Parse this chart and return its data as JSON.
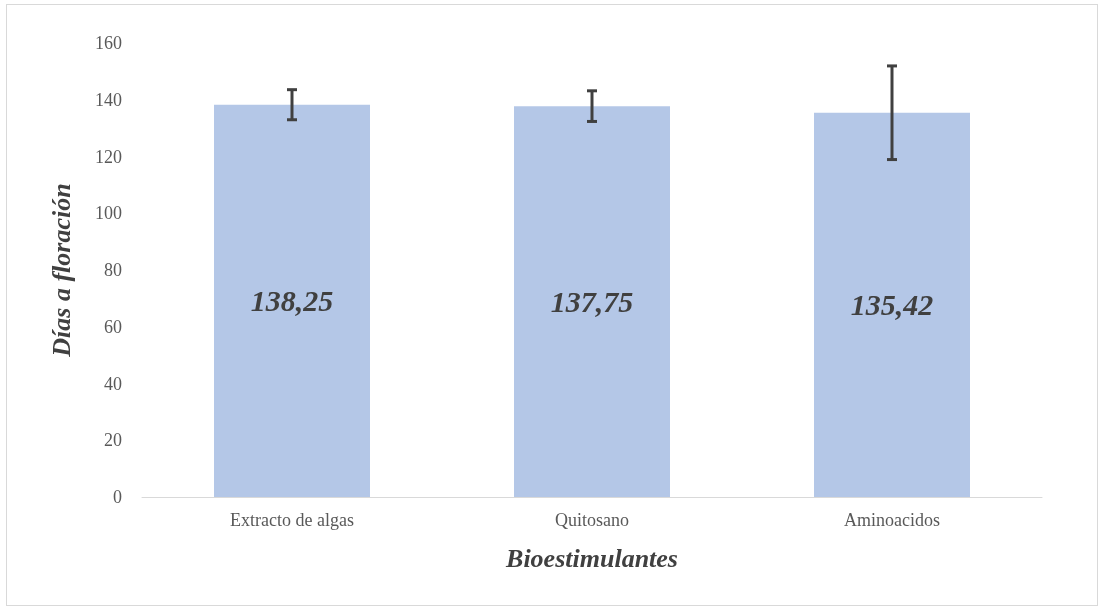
{
  "chart_data": {
    "type": "bar",
    "xlabel": "Bioestimulantes",
    "ylabel": "Días a floración",
    "categories": [
      "Extracto de algas",
      "Quitosano",
      "Aminoacidos"
    ],
    "values": [
      138.25,
      137.75,
      135.42
    ],
    "value_labels": [
      "138,25",
      "137,75",
      "135,42"
    ],
    "errors": [
      5.3,
      5.4,
      16.5
    ],
    "color": "#b4c7e7",
    "ylim": [
      0,
      160
    ],
    "yticks": [
      0,
      20,
      40,
      60,
      80,
      100,
      120,
      140,
      160
    ],
    "grid": false
  }
}
